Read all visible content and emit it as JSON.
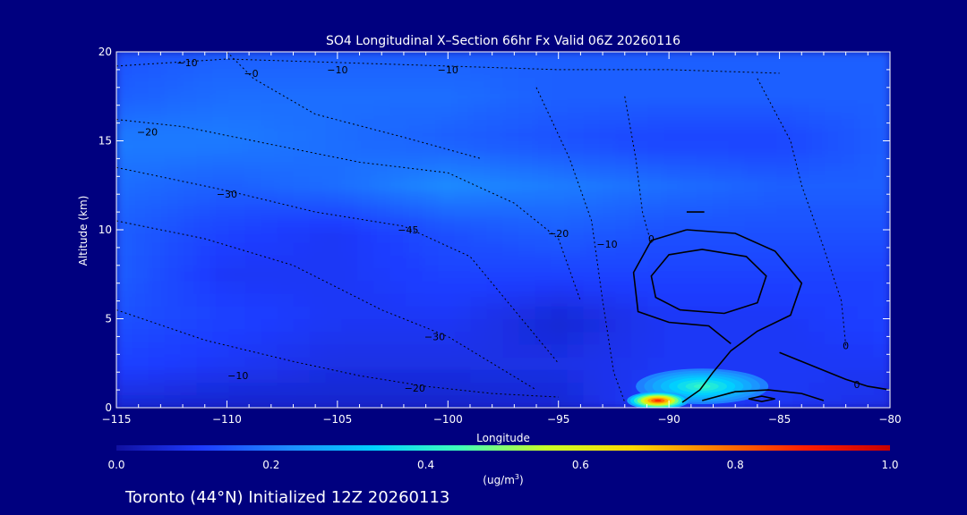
{
  "chart_data": {
    "type": "heatmap",
    "title": "SO4 Longitudinal X–Section 66hr  Fx Valid 06Z 20260116",
    "xlabel": "Longitude",
    "ylabel": "Altitude (km)",
    "xlim": [
      -115,
      -80
    ],
    "ylim": [
      0,
      20
    ],
    "x_ticks": [
      {
        "value": -115,
        "label": "−115"
      },
      {
        "value": -110,
        "label": "−110"
      },
      {
        "value": -105,
        "label": "−105"
      },
      {
        "value": -100,
        "label": "−100"
      },
      {
        "value": -95,
        "label": "−95"
      },
      {
        "value": -90,
        "label": "−90"
      },
      {
        "value": -85,
        "label": "−85"
      },
      {
        "value": -80,
        "label": "−80"
      }
    ],
    "y_ticks": [
      {
        "value": 0,
        "label": "0"
      },
      {
        "value": 5,
        "label": "5"
      },
      {
        "value": 10,
        "label": "10"
      },
      {
        "value": 15,
        "label": "15"
      },
      {
        "value": 20,
        "label": "20"
      }
    ],
    "colorbar": {
      "min": 0.0,
      "max": 1.0,
      "ticks": [
        {
          "value": 0.0,
          "label": "0.0"
        },
        {
          "value": 0.2,
          "label": "0.2"
        },
        {
          "value": 0.4,
          "label": "0.4"
        },
        {
          "value": 0.6,
          "label": "0.6"
        },
        {
          "value": 0.8,
          "label": "0.8"
        },
        {
          "value": 1.0,
          "label": "1.0"
        }
      ],
      "units_base": "(ug/m",
      "units_exp": "3",
      "units_close": ")",
      "colors": [
        "#1010a0",
        "#1e3cff",
        "#1e8cff",
        "#00d2ff",
        "#40ffb8",
        "#c8ff28",
        "#ffd800",
        "#ff7800",
        "#ff1e00",
        "#c80000"
      ]
    },
    "levels_x": [
      -115,
      -110,
      -105,
      -100,
      -95,
      -90,
      -85,
      -80
    ],
    "levels_y": [
      0,
      2.5,
      5,
      7.5,
      10,
      12.5,
      15,
      17.5,
      20
    ],
    "values": [
      [
        0.06,
        0.05,
        0.05,
        0.05,
        0.06,
        0.12,
        0.1,
        0.08
      ],
      [
        0.12,
        0.1,
        0.08,
        0.08,
        0.08,
        0.1,
        0.1,
        0.1
      ],
      [
        0.14,
        0.12,
        0.1,
        0.1,
        0.06,
        0.1,
        0.1,
        0.12
      ],
      [
        0.16,
        0.1,
        0.1,
        0.12,
        0.12,
        0.12,
        0.12,
        0.12
      ],
      [
        0.16,
        0.12,
        0.1,
        0.14,
        0.16,
        0.14,
        0.14,
        0.14
      ],
      [
        0.18,
        0.16,
        0.18,
        0.22,
        0.2,
        0.18,
        0.16,
        0.16
      ],
      [
        0.2,
        0.2,
        0.18,
        0.16,
        0.14,
        0.12,
        0.12,
        0.16
      ],
      [
        0.16,
        0.18,
        0.18,
        0.18,
        0.16,
        0.16,
        0.16,
        0.16
      ],
      [
        0.14,
        0.16,
        0.16,
        0.16,
        0.16,
        0.16,
        0.16,
        0.16
      ]
    ],
    "plume": {
      "lon": -90.5,
      "alt": 0.4,
      "peak": 0.95,
      "spread_lon": 1.4,
      "spread_alt": 0.5
    },
    "plume_halo": {
      "lon": -88.5,
      "alt": 1.2,
      "peak": 0.45,
      "spread_lon": 3.0,
      "spread_alt": 1.0
    },
    "contour_labels": [
      {
        "lon": -111.8,
        "alt": 19.4,
        "label": "−10"
      },
      {
        "lon": -108.9,
        "alt": 18.8,
        "label": "−0"
      },
      {
        "lon": -105.0,
        "alt": 19.0,
        "label": "−10"
      },
      {
        "lon": -100.0,
        "alt": 19.0,
        "label": "−10"
      },
      {
        "lon": -113.6,
        "alt": 15.5,
        "label": "−20"
      },
      {
        "lon": -110.0,
        "alt": 12.0,
        "label": "−30"
      },
      {
        "lon": -101.8,
        "alt": 10.0,
        "label": "−45"
      },
      {
        "lon": -95.0,
        "alt": 9.8,
        "label": "−20"
      },
      {
        "lon": -92.8,
        "alt": 9.2,
        "label": "−10"
      },
      {
        "lon": -90.8,
        "alt": 9.5,
        "label": "0"
      },
      {
        "lon": -100.6,
        "alt": 4.0,
        "label": "−30"
      },
      {
        "lon": -109.5,
        "alt": 1.8,
        "label": "−10"
      },
      {
        "lon": -101.5,
        "alt": 1.1,
        "label": "−20"
      },
      {
        "lon": -82.0,
        "alt": 3.5,
        "label": "0"
      },
      {
        "lon": -81.5,
        "alt": 1.3,
        "label": "0"
      }
    ]
  },
  "footer": {
    "caption": "Toronto (44°N) Initialized 12Z 20260113"
  },
  "colors": {
    "background": "#00007f",
    "text": "#ffffff",
    "contour": "#000000"
  }
}
